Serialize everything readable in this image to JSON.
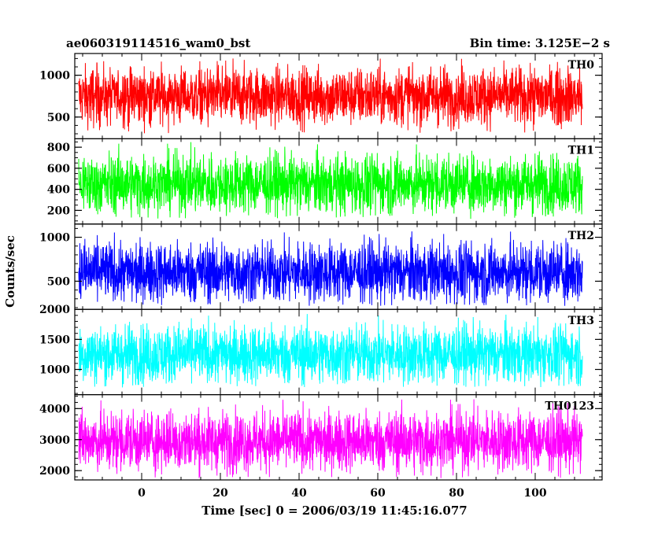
{
  "chart_data": {
    "type": "line",
    "title_left": "ae060319114516_wam0_bst",
    "title_right": "Bin time: 3.125E−2 s",
    "xlabel": "Time [sec] 0 = 2006/03/19 11:45:16.077",
    "ylabel": "Counts/sec",
    "xlim": [
      -17,
      117
    ],
    "data_x_range": [
      -16,
      112
    ],
    "bin_time": 0.03125,
    "xticks": [
      0,
      20,
      40,
      60,
      80,
      100
    ],
    "xtick_labels": [
      "0",
      "20",
      "40",
      "60",
      "80",
      "100"
    ],
    "panels": [
      {
        "name": "TH0",
        "color": "#ff0000",
        "ylim": [
          240,
          1260
        ],
        "yticks": [
          500,
          1000
        ],
        "ytick_labels": [
          "500",
          "1000"
        ],
        "minor_step": 100,
        "center": 750,
        "range": [
          300,
          1200
        ]
      },
      {
        "name": "TH1",
        "color": "#00ff00",
        "ylim": [
          70,
          880
        ],
        "yticks": [
          200,
          400,
          600,
          800
        ],
        "ytick_labels": [
          "200",
          "400",
          "600",
          "800"
        ],
        "minor_step": 50,
        "center": 450,
        "range": [
          120,
          850
        ]
      },
      {
        "name": "TH2",
        "color": "#0000ff",
        "ylim": [
          180,
          1150
        ],
        "yticks": [
          500,
          1000
        ],
        "ytick_labels": [
          "500",
          "1000"
        ],
        "minor_step": 100,
        "center": 600,
        "range": [
          220,
          1120
        ]
      },
      {
        "name": "TH3",
        "color": "#00ffff",
        "ylim": [
          580,
          2000
        ],
        "yticks": [
          1000,
          1500,
          2000
        ],
        "ytick_labels": [
          "1000",
          "1500",
          "2000"
        ],
        "minor_step": 100,
        "center": 1250,
        "range": [
          700,
          1980
        ]
      },
      {
        "name": "TH0123",
        "color": "#ff00ff",
        "ylim": [
          1700,
          4450
        ],
        "yticks": [
          2000,
          3000,
          4000
        ],
        "ytick_labels": [
          "2000",
          "3000",
          "4000"
        ],
        "minor_step": 200,
        "center": 2950,
        "range": [
          1750,
          4300
        ]
      }
    ]
  }
}
